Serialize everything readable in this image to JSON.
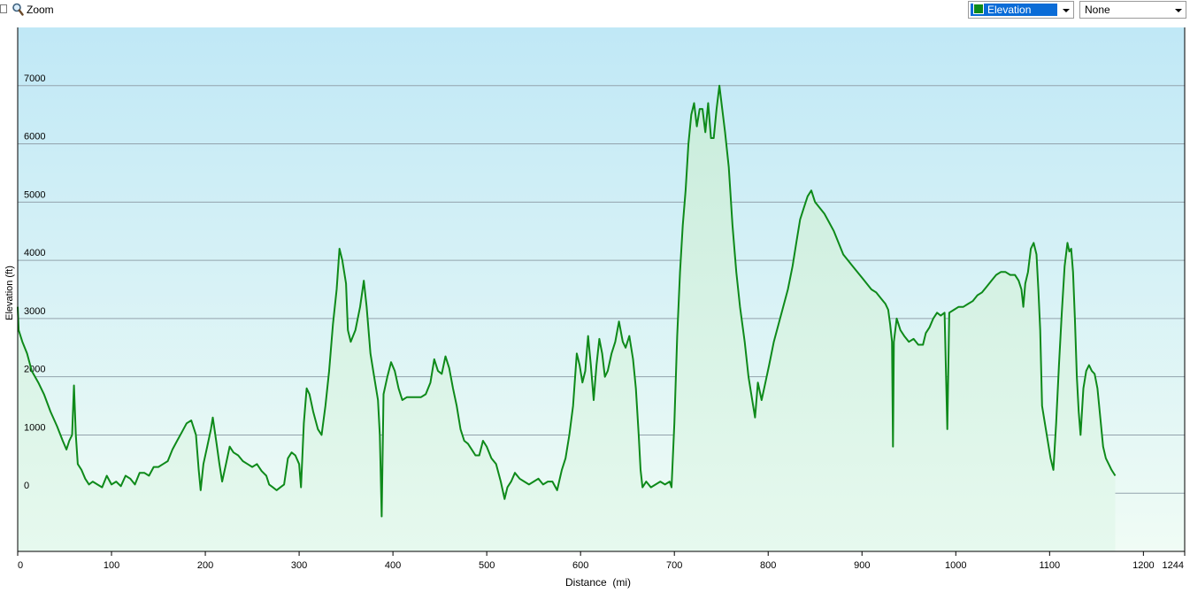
{
  "toolbar": {
    "zoom_label": "Zoom",
    "zoom_checked": false,
    "series_select": {
      "selected": "Elevation",
      "color": "#0e8a1a"
    },
    "second_select": {
      "selected": "None"
    }
  },
  "chart_data": {
    "type": "area",
    "title": "",
    "xlabel": "Distance  (mi)",
    "ylabel": "Elevation (ft)",
    "xlim": [
      0,
      1244
    ],
    "ylim": [
      -1000,
      8000
    ],
    "x_ticks": [
      0,
      100,
      200,
      300,
      400,
      500,
      600,
      700,
      800,
      900,
      1000,
      1100,
      1200,
      1244
    ],
    "y_ticks": [
      0,
      1000,
      2000,
      3000,
      4000,
      5000,
      6000,
      7000
    ],
    "grid": true,
    "colors": {
      "line": "#0e8a1a",
      "fill_top": "#c9ecdc",
      "fill_bottom": "#e6f9ee",
      "bg_top": "#c0e8f6",
      "bg_bottom": "#f0fcf5",
      "grid": "#93a3ad"
    },
    "series": [
      {
        "name": "Elevation",
        "points": [
          [
            0,
            3200
          ],
          [
            1,
            2800
          ],
          [
            5,
            2600
          ],
          [
            10,
            2400
          ],
          [
            15,
            2100
          ],
          [
            22,
            1900
          ],
          [
            28,
            1700
          ],
          [
            35,
            1400
          ],
          [
            42,
            1150
          ],
          [
            48,
            900
          ],
          [
            52,
            750
          ],
          [
            55,
            900
          ],
          [
            58,
            1000
          ],
          [
            60,
            1850
          ],
          [
            62,
            1000
          ],
          [
            64,
            500
          ],
          [
            68,
            400
          ],
          [
            72,
            250
          ],
          [
            76,
            150
          ],
          [
            80,
            200
          ],
          [
            85,
            150
          ],
          [
            90,
            100
          ],
          [
            95,
            300
          ],
          [
            100,
            150
          ],
          [
            105,
            200
          ],
          [
            110,
            120
          ],
          [
            115,
            300
          ],
          [
            120,
            250
          ],
          [
            125,
            150
          ],
          [
            130,
            350
          ],
          [
            135,
            350
          ],
          [
            140,
            300
          ],
          [
            145,
            450
          ],
          [
            150,
            450
          ],
          [
            155,
            500
          ],
          [
            160,
            550
          ],
          [
            165,
            750
          ],
          [
            170,
            900
          ],
          [
            175,
            1050
          ],
          [
            180,
            1200
          ],
          [
            185,
            1250
          ],
          [
            190,
            1000
          ],
          [
            193,
            400
          ],
          [
            195,
            50
          ],
          [
            198,
            500
          ],
          [
            202,
            800
          ],
          [
            206,
            1100
          ],
          [
            208,
            1300
          ],
          [
            212,
            850
          ],
          [
            215,
            500
          ],
          [
            218,
            200
          ],
          [
            222,
            500
          ],
          [
            226,
            800
          ],
          [
            230,
            700
          ],
          [
            235,
            650
          ],
          [
            240,
            550
          ],
          [
            245,
            500
          ],
          [
            250,
            450
          ],
          [
            255,
            500
          ],
          [
            260,
            380
          ],
          [
            265,
            300
          ],
          [
            268,
            150
          ],
          [
            272,
            100
          ],
          [
            276,
            50
          ],
          [
            280,
            100
          ],
          [
            284,
            150
          ],
          [
            288,
            600
          ],
          [
            292,
            700
          ],
          [
            296,
            650
          ],
          [
            300,
            500
          ],
          [
            302,
            100
          ],
          [
            305,
            1200
          ],
          [
            308,
            1800
          ],
          [
            311,
            1700
          ],
          [
            315,
            1400
          ],
          [
            320,
            1100
          ],
          [
            324,
            1000
          ],
          [
            328,
            1500
          ],
          [
            332,
            2100
          ],
          [
            336,
            2900
          ],
          [
            340,
            3500
          ],
          [
            343,
            4200
          ],
          [
            346,
            4000
          ],
          [
            350,
            3600
          ],
          [
            352,
            2800
          ],
          [
            355,
            2600
          ],
          [
            360,
            2800
          ],
          [
            365,
            3200
          ],
          [
            369,
            3650
          ],
          [
            372,
            3200
          ],
          [
            376,
            2400
          ],
          [
            380,
            2000
          ],
          [
            384,
            1600
          ],
          [
            386,
            1000
          ],
          [
            388,
            -400
          ],
          [
            390,
            1700
          ],
          [
            394,
            2000
          ],
          [
            398,
            2250
          ],
          [
            402,
            2100
          ],
          [
            406,
            1800
          ],
          [
            410,
            1600
          ],
          [
            415,
            1650
          ],
          [
            420,
            1650
          ],
          [
            425,
            1650
          ],
          [
            430,
            1650
          ],
          [
            435,
            1700
          ],
          [
            440,
            1900
          ],
          [
            444,
            2300
          ],
          [
            448,
            2100
          ],
          [
            452,
            2050
          ],
          [
            456,
            2350
          ],
          [
            460,
            2150
          ],
          [
            464,
            1800
          ],
          [
            468,
            1500
          ],
          [
            472,
            1100
          ],
          [
            476,
            900
          ],
          [
            480,
            850
          ],
          [
            484,
            750
          ],
          [
            488,
            650
          ],
          [
            492,
            650
          ],
          [
            496,
            900
          ],
          [
            500,
            800
          ],
          [
            505,
            600
          ],
          [
            510,
            500
          ],
          [
            515,
            200
          ],
          [
            519,
            -100
          ],
          [
            522,
            100
          ],
          [
            526,
            200
          ],
          [
            530,
            350
          ],
          [
            535,
            250
          ],
          [
            540,
            200
          ],
          [
            545,
            150
          ],
          [
            550,
            200
          ],
          [
            555,
            250
          ],
          [
            560,
            150
          ],
          [
            565,
            200
          ],
          [
            570,
            200
          ],
          [
            575,
            50
          ],
          [
            580,
            400
          ],
          [
            584,
            600
          ],
          [
            588,
            1000
          ],
          [
            592,
            1500
          ],
          [
            596,
            2400
          ],
          [
            599,
            2200
          ],
          [
            602,
            1900
          ],
          [
            605,
            2100
          ],
          [
            608,
            2700
          ],
          [
            611,
            2200
          ],
          [
            614,
            1600
          ],
          [
            617,
            2200
          ],
          [
            620,
            2650
          ],
          [
            623,
            2400
          ],
          [
            626,
            2000
          ],
          [
            629,
            2100
          ],
          [
            633,
            2400
          ],
          [
            637,
            2600
          ],
          [
            641,
            2950
          ],
          [
            645,
            2600
          ],
          [
            648,
            2500
          ],
          [
            652,
            2700
          ],
          [
            656,
            2300
          ],
          [
            659,
            1800
          ],
          [
            662,
            1000
          ],
          [
            664,
            400
          ],
          [
            666,
            100
          ],
          [
            670,
            200
          ],
          [
            675,
            100
          ],
          [
            680,
            150
          ],
          [
            685,
            200
          ],
          [
            690,
            150
          ],
          [
            695,
            200
          ],
          [
            697,
            100
          ],
          [
            700,
            1200
          ],
          [
            703,
            2700
          ],
          [
            706,
            3800
          ],
          [
            709,
            4600
          ],
          [
            712,
            5200
          ],
          [
            715,
            6000
          ],
          [
            718,
            6500
          ],
          [
            721,
            6700
          ],
          [
            724,
            6300
          ],
          [
            727,
            6600
          ],
          [
            730,
            6600
          ],
          [
            733,
            6200
          ],
          [
            736,
            6700
          ],
          [
            739,
            6100
          ],
          [
            742,
            6100
          ],
          [
            745,
            6600
          ],
          [
            748,
            7000
          ],
          [
            751,
            6600
          ],
          [
            754,
            6200
          ],
          [
            758,
            5600
          ],
          [
            762,
            4600
          ],
          [
            766,
            3800
          ],
          [
            770,
            3200
          ],
          [
            775,
            2600
          ],
          [
            779,
            2000
          ],
          [
            783,
            1600
          ],
          [
            786,
            1300
          ],
          [
            789,
            1900
          ],
          [
            793,
            1600
          ],
          [
            797,
            1900
          ],
          [
            801,
            2200
          ],
          [
            806,
            2600
          ],
          [
            811,
            2900
          ],
          [
            816,
            3200
          ],
          [
            821,
            3500
          ],
          [
            826,
            3900
          ],
          [
            830,
            4300
          ],
          [
            834,
            4700
          ],
          [
            838,
            4900
          ],
          [
            842,
            5100
          ],
          [
            846,
            5200
          ],
          [
            850,
            5000
          ],
          [
            855,
            4900
          ],
          [
            860,
            4800
          ],
          [
            865,
            4650
          ],
          [
            870,
            4500
          ],
          [
            875,
            4300
          ],
          [
            880,
            4100
          ],
          [
            885,
            4000
          ],
          [
            890,
            3900
          ],
          [
            895,
            3800
          ],
          [
            900,
            3700
          ],
          [
            905,
            3600
          ],
          [
            910,
            3500
          ],
          [
            915,
            3450
          ],
          [
            920,
            3350
          ],
          [
            925,
            3250
          ],
          [
            928,
            3150
          ],
          [
            930,
            2900
          ],
          [
            932,
            2600
          ],
          [
            933,
            800
          ],
          [
            934,
            2600
          ],
          [
            937,
            3000
          ],
          [
            941,
            2800
          ],
          [
            945,
            2700
          ],
          [
            950,
            2600
          ],
          [
            955,
            2650
          ],
          [
            960,
            2550
          ],
          [
            965,
            2550
          ],
          [
            968,
            2750
          ],
          [
            972,
            2850
          ],
          [
            976,
            3000
          ],
          [
            980,
            3100
          ],
          [
            984,
            3050
          ],
          [
            988,
            3100
          ],
          [
            991,
            1100
          ],
          [
            993,
            3100
          ],
          [
            998,
            3150
          ],
          [
            1003,
            3200
          ],
          [
            1008,
            3200
          ],
          [
            1013,
            3250
          ],
          [
            1018,
            3300
          ],
          [
            1023,
            3400
          ],
          [
            1028,
            3450
          ],
          [
            1033,
            3550
          ],
          [
            1038,
            3650
          ],
          [
            1043,
            3750
          ],
          [
            1048,
            3800
          ],
          [
            1053,
            3800
          ],
          [
            1058,
            3750
          ],
          [
            1063,
            3750
          ],
          [
            1067,
            3650
          ],
          [
            1070,
            3500
          ],
          [
            1072,
            3200
          ],
          [
            1074,
            3600
          ],
          [
            1077,
            3800
          ],
          [
            1080,
            4200
          ],
          [
            1083,
            4300
          ],
          [
            1086,
            4100
          ],
          [
            1088,
            3500
          ],
          [
            1090,
            2800
          ],
          [
            1092,
            1500
          ],
          [
            1095,
            1200
          ],
          [
            1098,
            900
          ],
          [
            1101,
            600
          ],
          [
            1104,
            400
          ],
          [
            1107,
            1200
          ],
          [
            1110,
            2200
          ],
          [
            1113,
            3100
          ],
          [
            1116,
            3900
          ],
          [
            1119,
            4300
          ],
          [
            1121,
            4150
          ],
          [
            1123,
            4200
          ],
          [
            1125,
            3800
          ],
          [
            1127,
            3000
          ],
          [
            1129,
            2000
          ],
          [
            1131,
            1400
          ],
          [
            1133,
            1000
          ],
          [
            1136,
            1800
          ],
          [
            1139,
            2100
          ],
          [
            1142,
            2200
          ],
          [
            1145,
            2100
          ],
          [
            1148,
            2050
          ],
          [
            1151,
            1800
          ],
          [
            1154,
            1300
          ],
          [
            1157,
            800
          ],
          [
            1160,
            600
          ],
          [
            1163,
            500
          ],
          [
            1166,
            400
          ],
          [
            1170,
            300
          ]
        ]
      }
    ]
  }
}
